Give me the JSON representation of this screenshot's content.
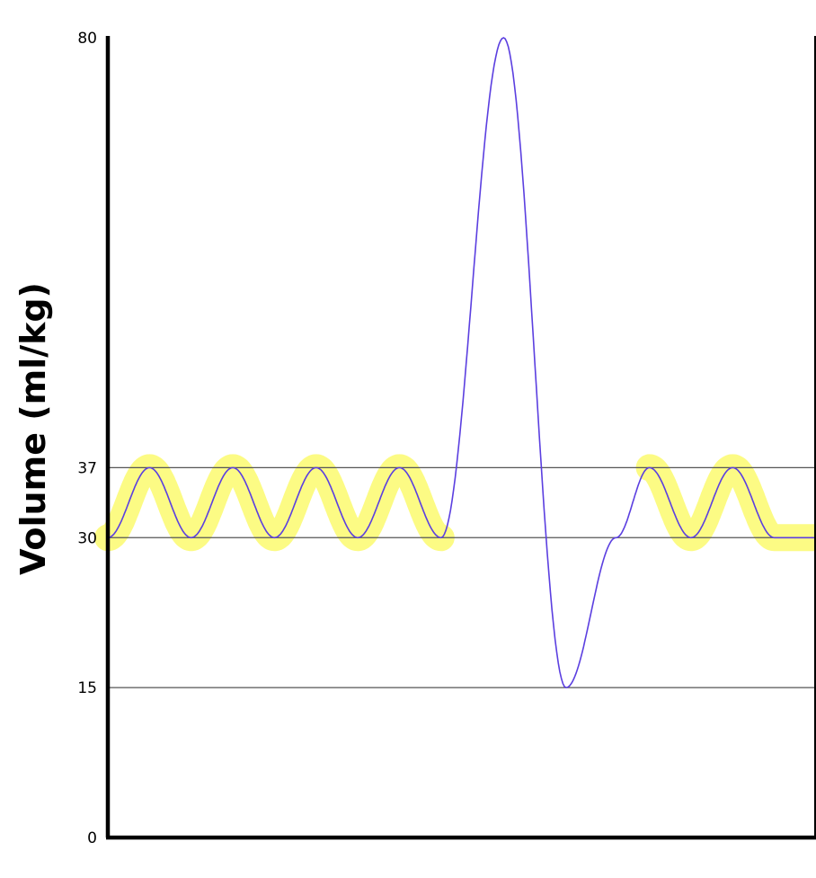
{
  "chart_data": {
    "type": "line",
    "title": "",
    "xlabel": "",
    "ylabel": "Volume (ml/kg)",
    "ylim": [
      0,
      80
    ],
    "yticks": [
      0,
      15,
      30,
      37,
      80
    ],
    "reference_lines": [
      15,
      30,
      37
    ],
    "highlight_segments": [
      {
        "x_start": 0.0,
        "x_end": 4.0,
        "range": [
          30,
          37
        ]
      },
      {
        "x_start": 6.5,
        "x_end": 8.5,
        "range": [
          30,
          37
        ]
      }
    ],
    "series": [
      {
        "x": [
          0,
          0.5,
          1,
          1.5,
          2,
          2.5,
          3,
          3.5,
          4,
          4.75,
          5.5,
          6.1,
          6.5,
          7.0,
          7.5,
          8.0,
          8.5
        ],
        "y": [
          30,
          37,
          30,
          37,
          30,
          37,
          30,
          37,
          30,
          80,
          15,
          30,
          37,
          30,
          37,
          30,
          30
        ],
        "color": "#5b3fe0"
      }
    ],
    "colors": {
      "curve": "#5b3fe0",
      "highlight": "#fbfa6e",
      "axis": "#000000",
      "reference": "#555555"
    }
  }
}
